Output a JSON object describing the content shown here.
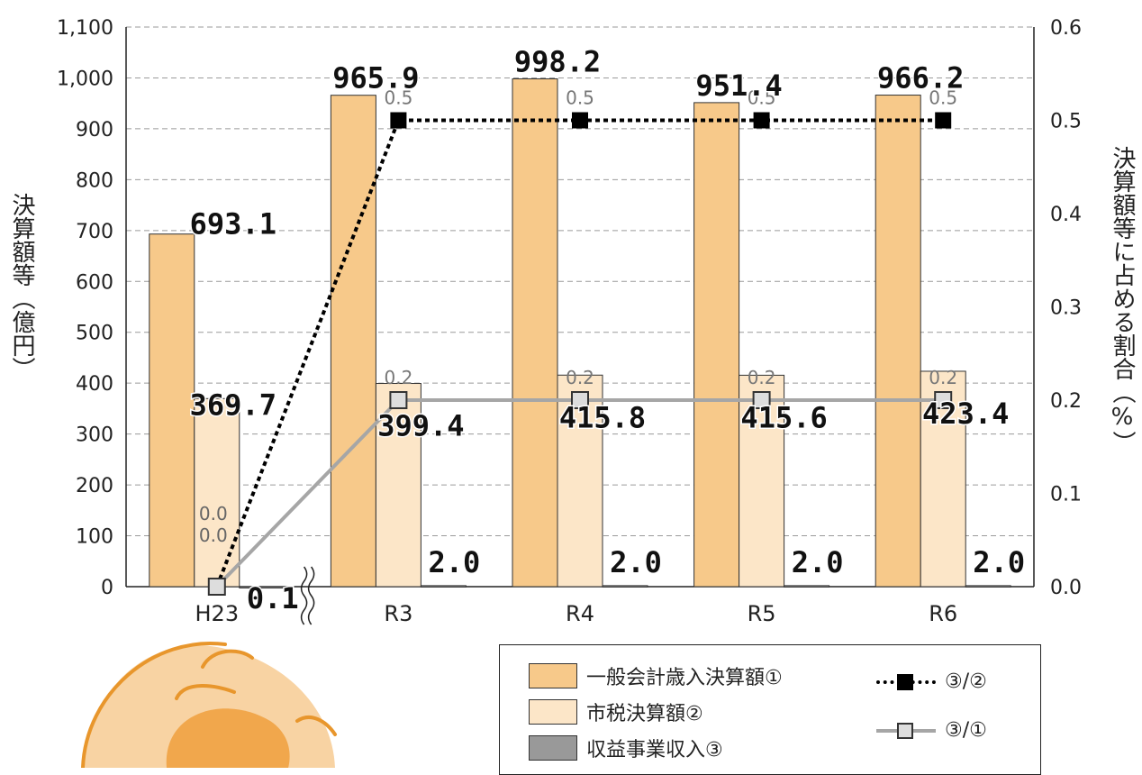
{
  "chart_data": {
    "type": "bar",
    "categories": [
      "H23",
      "R3",
      "R4",
      "R5",
      "R6"
    ],
    "y_left": {
      "label": "決算額等（億円）",
      "range": [
        0,
        1100
      ],
      "ticks": [
        "0",
        "100",
        "200",
        "300",
        "400",
        "500",
        "600",
        "700",
        "800",
        "900",
        "1,000",
        "1,100"
      ]
    },
    "y_right": {
      "label": "決算額等に占める割合（%）",
      "range": [
        0,
        0.6
      ],
      "ticks": [
        "0.0",
        "0.1",
        "0.2",
        "0.3",
        "0.4",
        "0.5",
        "0.6"
      ]
    },
    "grid": true,
    "axis_break": "between H23 and R3",
    "series": [
      {
        "name": "一般会計歳入決算額①",
        "kind": "bar",
        "color": "#f7c98a",
        "values": [
          693.1,
          965.9,
          998.2,
          951.4,
          966.2
        ],
        "labels": [
          "693.1",
          "965.9",
          "998.2",
          "951.4",
          "966.2"
        ]
      },
      {
        "name": "市税決算額②",
        "kind": "bar",
        "color": "#fce6c8",
        "values": [
          369.7,
          399.4,
          415.8,
          415.6,
          423.4
        ],
        "labels": [
          "369.7",
          "399.4",
          "415.8",
          "415.6",
          "423.4"
        ]
      },
      {
        "name": "収益事業収入③",
        "kind": "bar",
        "color": "#999999",
        "values": [
          0.1,
          2.0,
          2.0,
          2.0,
          2.0
        ],
        "labels": [
          "0.1",
          "2.0",
          "2.0",
          "2.0",
          "2.0"
        ]
      },
      {
        "name": "③/②",
        "kind": "line",
        "style": "dotted",
        "color": "#000000",
        "axis": "right",
        "values": [
          0.0,
          0.5,
          0.5,
          0.5,
          0.5
        ],
        "labels": [
          "0.0",
          "0.5",
          "0.5",
          "0.5",
          "0.5"
        ]
      },
      {
        "name": "③/①",
        "kind": "line",
        "style": "solid",
        "color": "#a6a6a6",
        "axis": "right",
        "values": [
          0.0,
          0.2,
          0.2,
          0.2,
          0.2
        ],
        "labels": [
          "0.0",
          "0.2",
          "0.2",
          "0.2",
          "0.2"
        ]
      }
    ],
    "legend_position": "bottom-right"
  },
  "legend": {
    "bar1": "一般会計歳入決算額①",
    "bar2": "市税決算額②",
    "bar3": "収益事業収入③",
    "line1": "③/②",
    "line2": "③/①"
  }
}
